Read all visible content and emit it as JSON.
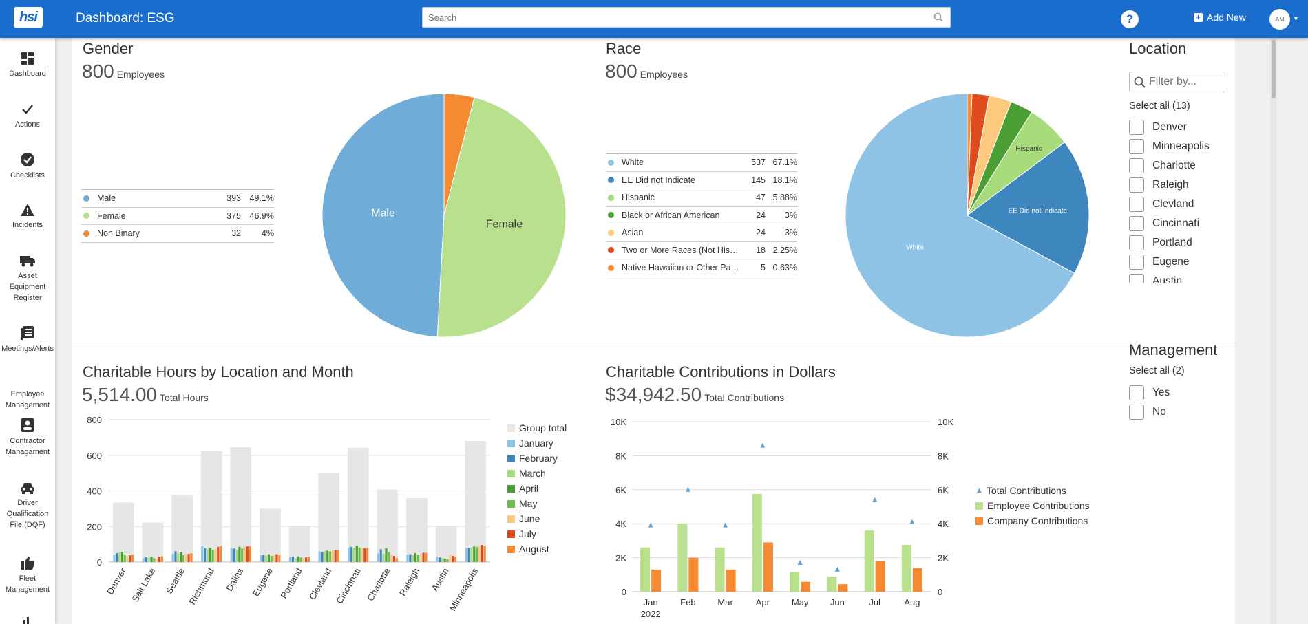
{
  "header": {
    "logo_text": "hsi",
    "title": "Dashboard: ESG",
    "search_placeholder": "Search",
    "help_label": "?",
    "add_new_label": "Add New",
    "avatar_initials": "AM"
  },
  "sidebar": {
    "items": [
      {
        "label": "Dashboard",
        "icon": "dashboard-icon"
      },
      {
        "label": "Actions",
        "icon": "check-icon"
      },
      {
        "label": "Checklists",
        "icon": "checklist-icon"
      },
      {
        "label": "Incidents",
        "icon": "warning-icon"
      },
      {
        "label": "Asset Equipment Register",
        "icon": "truck-icon"
      },
      {
        "label": "Meetings/Alerts",
        "icon": "meetings-icon"
      },
      {
        "label": "Employee Management",
        "icon": "employee-icon"
      },
      {
        "label": "Contractor Managament",
        "icon": "contractor-icon"
      },
      {
        "label": "Driver Qualification File (DQF)",
        "icon": "car-icon"
      },
      {
        "label": "Fleet Management",
        "icon": "thumbs-up-icon"
      }
    ]
  },
  "gender": {
    "title": "Gender",
    "total": "800",
    "total_label": "Employees",
    "rows": [
      {
        "label": "Male",
        "count": "393",
        "pct": "49.1%",
        "color": "#6fadd8"
      },
      {
        "label": "Female",
        "count": "375",
        "pct": "46.9%",
        "color": "#b8e08d"
      },
      {
        "label": "Non Binary",
        "count": "32",
        "pct": "4%",
        "color": "#f58a33"
      }
    ],
    "slice_labels": {
      "male": "Male",
      "female": "Female"
    }
  },
  "race": {
    "title": "Race",
    "total": "800",
    "total_label": "Employees",
    "rows": [
      {
        "label": "White",
        "count": "537",
        "pct": "67.1%",
        "color": "#8fc3e6"
      },
      {
        "label": "EE Did not Indicate",
        "count": "145",
        "pct": "18.1%",
        "color": "#3e87be"
      },
      {
        "label": "Hispanic",
        "count": "47",
        "pct": "5.88%",
        "color": "#a7db7c"
      },
      {
        "label": "Black or African American",
        "count": "24",
        "pct": "3%",
        "color": "#4a9e33"
      },
      {
        "label": "Asian",
        "count": "24",
        "pct": "3%",
        "color": "#fcc97e"
      },
      {
        "label": "Two or More Races (Not Hispa...",
        "count": "18",
        "pct": "2.25%",
        "color": "#e04b1e"
      },
      {
        "label": "Native Hawaiian or Other Pacifi...",
        "count": "5",
        "pct": "0.63%",
        "color": "#f58a33"
      }
    ],
    "slice_labels": {
      "white": "White",
      "ee": "EE Did not Indicate",
      "hispanic": "Hispanic"
    }
  },
  "location_filter": {
    "title": "Location",
    "placeholder": "Filter by...",
    "select_all": "Select all (13)",
    "options": [
      "Denver",
      "Minneapolis",
      "Charlotte",
      "Raleigh",
      "Clevland",
      "Cincinnati",
      "Portland",
      "Eugene",
      "Austin"
    ]
  },
  "management_filter": {
    "title": "Management",
    "select_all": "Select all (2)",
    "options": [
      "Yes",
      "No"
    ]
  },
  "hours": {
    "title": "Charitable Hours by Location and Month",
    "total": "5,514.00",
    "total_label": "Total Hours"
  },
  "contributions": {
    "title": "Charitable Contributions in Dollars",
    "total": "$34,942.50",
    "total_label": "Total Contributions"
  },
  "colors": {
    "brand": "#1a6dcd"
  },
  "chart_data": [
    {
      "type": "pie",
      "title": "Gender",
      "categories": [
        "Male",
        "Female",
        "Non Binary"
      ],
      "values": [
        393,
        375,
        32
      ],
      "colors": [
        "#6fadd8",
        "#b8e08d",
        "#f58a33"
      ]
    },
    {
      "type": "pie",
      "title": "Race",
      "categories": [
        "White",
        "EE Did not Indicate",
        "Hispanic",
        "Black or African American",
        "Asian",
        "Two or More Races (Not Hispanic)",
        "Native Hawaiian or Other Pacific Islander"
      ],
      "values": [
        537,
        145,
        47,
        24,
        24,
        18,
        5
      ],
      "colors": [
        "#8fc3e6",
        "#3e87be",
        "#a7db7c",
        "#4a9e33",
        "#fcc97e",
        "#e04b1e",
        "#f58a33"
      ]
    },
    {
      "type": "bar",
      "title": "Charitable Hours by Location and Month",
      "categories": [
        "Denver",
        "Salt Lake",
        "Seattle",
        "Richmond",
        "Dallas",
        "Eugene",
        "Portland",
        "Clevland",
        "Cincinnati",
        "Charlotte",
        "Raleigh",
        "Austin",
        "Minneapolis"
      ],
      "yticks": [
        "800",
        "600",
        "400",
        "200",
        "0"
      ],
      "ylim": [
        0,
        800
      ],
      "series": [
        {
          "name": "Group total",
          "color": "#e6e6e6",
          "values": [
            335,
            222,
            374,
            622,
            645,
            300,
            205,
            498,
            642,
            408,
            360,
            205,
            680
          ]
        },
        {
          "name": "January",
          "color": "#8fc3e6",
          "values": [
            40,
            22,
            46,
            90,
            78,
            38,
            28,
            60,
            82,
            48,
            42,
            30,
            80
          ]
        },
        {
          "name": "February",
          "color": "#3e87be",
          "values": [
            50,
            28,
            60,
            78,
            76,
            40,
            30,
            56,
            86,
            72,
            44,
            26,
            80
          ]
        },
        {
          "name": "March",
          "color": "#a7db7c",
          "values": [
            54,
            24,
            48,
            72,
            70,
            36,
            22,
            62,
            80,
            46,
            40,
            22,
            82
          ]
        },
        {
          "name": "April",
          "color": "#4a9e33",
          "values": [
            58,
            30,
            56,
            80,
            86,
            44,
            32,
            64,
            92,
            78,
            50,
            20,
            88
          ]
        },
        {
          "name": "May",
          "color": "#6cbf4f",
          "values": [
            42,
            22,
            40,
            68,
            76,
            34,
            26,
            60,
            82,
            56,
            40,
            16,
            84
          ]
        },
        {
          "name": "June",
          "color": "#fcc97e",
          "values": [
            30,
            18,
            42,
            72,
            84,
            40,
            22,
            64,
            80,
            40,
            46,
            40,
            90
          ]
        },
        {
          "name": "July",
          "color": "#e04b1e",
          "values": [
            38,
            30,
            46,
            86,
            88,
            44,
            28,
            66,
            78,
            34,
            52,
            34,
            96
          ]
        },
        {
          "name": "August",
          "color": "#f58a33",
          "values": [
            42,
            32,
            50,
            90,
            90,
            38,
            30,
            66,
            80,
            22,
            52,
            30,
            90
          ]
        }
      ]
    },
    {
      "type": "bar",
      "title": "Charitable Contributions in Dollars",
      "categories": [
        "Jan",
        "Feb",
        "Mar",
        "Apr",
        "May",
        "Jun",
        "Jul",
        "Aug"
      ],
      "x_sublabel": "2022",
      "yticks": [
        "10K",
        "8K",
        "6K",
        "4K",
        "2K",
        "0"
      ],
      "ylim": [
        0,
        10000
      ],
      "series": [
        {
          "name": "Total Contributions",
          "color": "#5da3d9",
          "marker": "triangle",
          "values": [
            3900,
            6000,
            3900,
            8600,
            1700,
            1300,
            5400,
            4100
          ]
        },
        {
          "name": "Employee Contributions",
          "color": "#b8e08d",
          "values": [
            2600,
            4000,
            2600,
            5750,
            1150,
            880,
            3600,
            2750
          ]
        },
        {
          "name": "Company Contributions",
          "color": "#f58a33",
          "values": [
            1300,
            2000,
            1300,
            2900,
            580,
            440,
            1800,
            1380
          ]
        }
      ]
    }
  ]
}
